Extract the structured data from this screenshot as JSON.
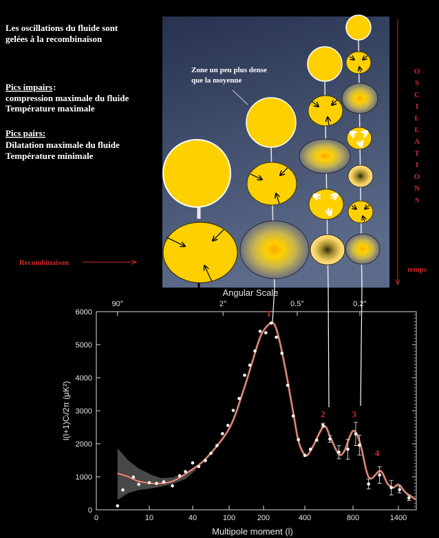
{
  "intro": {
    "line1": "Les oscillations du fluide sont",
    "line2": "gelées à la recombinaison"
  },
  "odd_peaks": {
    "heading": "Pics impairs",
    "heading_suffix": ":",
    "line1": "compression maximale du fluide",
    "line2": "Température maximale"
  },
  "even_peaks": {
    "heading": "Pics pairs:",
    "line1": "Dilatation maximale du fluide",
    "line2": "Température minimale"
  },
  "annotation": {
    "line1": "Zone un peu plus dense",
    "line2": "que la moyenne"
  },
  "recombination_label": "Recombinaison",
  "time_label": "temps",
  "oscillations_letters": [
    "O",
    "S",
    "C",
    "I",
    "L",
    "L",
    "A",
    "T",
    "I",
    "O",
    "N",
    "S"
  ],
  "colors": {
    "accent_red": "#d42a2a",
    "blob_yellow": "#ffd000",
    "panel_top": "#26324e",
    "panel_bottom": "#5d6b8b",
    "fit_curve": "#e8a090"
  },
  "chart_data": {
    "type": "scatter",
    "title": "",
    "top_axis_title": "Angular Scale",
    "xlabel": "Multipole moment (l)",
    "ylabel": "l(l+1)Cₗ/2π (μK²)",
    "ylim": [
      0,
      6000
    ],
    "y_ticks": [
      0,
      1000,
      2000,
      3000,
      4000,
      5000,
      6000
    ],
    "x_ticks": [
      0,
      10,
      40,
      100,
      200,
      400,
      800,
      1400
    ],
    "top_ticks": [
      {
        "label": "90°",
        "l": 4
      },
      {
        "label": "2°",
        "l": 90
      },
      {
        "label": "0.5°",
        "l": 363
      },
      {
        "label": "0.2°",
        "l": 891
      }
    ],
    "points": [
      {
        "l": 4,
        "v": 120
      },
      {
        "l": 5,
        "v": 600
      },
      {
        "l": 7,
        "v": 990
      },
      {
        "l": 8,
        "v": 770
      },
      {
        "l": 10,
        "v": 820
      },
      {
        "l": 15,
        "v": 800
      },
      {
        "l": 20,
        "v": 845
      },
      {
        "l": 26,
        "v": 725
      },
      {
        "l": 31,
        "v": 1030
      },
      {
        "l": 35,
        "v": 1155
      },
      {
        "l": 40,
        "v": 1420
      },
      {
        "l": 50,
        "v": 1310
      },
      {
        "l": 61,
        "v": 1490
      },
      {
        "l": 70,
        "v": 1710
      },
      {
        "l": 80,
        "v": 1945
      },
      {
        "l": 89,
        "v": 2305
      },
      {
        "l": 98,
        "v": 2555
      },
      {
        "l": 112,
        "v": 3010
      },
      {
        "l": 129,
        "v": 3370
      },
      {
        "l": 145,
        "v": 4075
      },
      {
        "l": 160,
        "v": 4380
      },
      {
        "l": 175,
        "v": 4810
      },
      {
        "l": 190,
        "v": 5405
      },
      {
        "l": 211,
        "v": 5360
      },
      {
        "l": 237,
        "v": 5655
      },
      {
        "l": 262,
        "v": 5225
      },
      {
        "l": 289,
        "v": 4740
      },
      {
        "l": 317,
        "v": 3770
      },
      {
        "l": 344,
        "v": 2840
      },
      {
        "l": 369,
        "v": 2125
      },
      {
        "l": 400,
        "v": 1647
      },
      {
        "l": 447,
        "v": 1834
      },
      {
        "l": 499,
        "v": 2110
      },
      {
        "l": 551,
        "v": 2560,
        "err": 60
      },
      {
        "l": 608,
        "v": 2145,
        "err": 100
      },
      {
        "l": 683,
        "v": 1744,
        "err": 200
      },
      {
        "l": 757,
        "v": 1834,
        "err": 300
      },
      {
        "l": 836,
        "v": 2297,
        "err": 350
      },
      {
        "l": 885,
        "v": 1958,
        "err": 300
      },
      {
        "l": 1006,
        "v": 782,
        "err": 150
      },
      {
        "l": 1151,
        "v": 1052,
        "err": 250
      },
      {
        "l": 1306,
        "v": 671,
        "err": 220
      },
      {
        "l": 1415,
        "v": 609,
        "err": 100
      },
      {
        "l": 1539,
        "v": 360,
        "err": 80
      }
    ],
    "fit": [
      {
        "l": 4,
        "v": 1107
      },
      {
        "l": 6,
        "v": 1003
      },
      {
        "l": 8,
        "v": 865
      },
      {
        "l": 15,
        "v": 796
      },
      {
        "l": 26,
        "v": 865
      },
      {
        "l": 37,
        "v": 1142
      },
      {
        "l": 62,
        "v": 1557
      },
      {
        "l": 100,
        "v": 2457
      },
      {
        "l": 140,
        "v": 3564
      },
      {
        "l": 167,
        "v": 4464
      },
      {
        "l": 193,
        "v": 5294
      },
      {
        "l": 237,
        "v": 5654
      },
      {
        "l": 266,
        "v": 5398
      },
      {
        "l": 306,
        "v": 4256
      },
      {
        "l": 346,
        "v": 2872
      },
      {
        "l": 371,
        "v": 2041
      },
      {
        "l": 409,
        "v": 1647
      },
      {
        "l": 465,
        "v": 1903
      },
      {
        "l": 558,
        "v": 2526
      },
      {
        "l": 614,
        "v": 2180
      },
      {
        "l": 679,
        "v": 1696
      },
      {
        "l": 726,
        "v": 1765
      },
      {
        "l": 800,
        "v": 2388
      },
      {
        "l": 891,
        "v": 2041
      },
      {
        "l": 982,
        "v": 1142
      },
      {
        "l": 1042,
        "v": 948
      },
      {
        "l": 1164,
        "v": 1176
      },
      {
        "l": 1255,
        "v": 796
      },
      {
        "l": 1330,
        "v": 671
      },
      {
        "l": 1406,
        "v": 761
      },
      {
        "l": 1497,
        "v": 519
      },
      {
        "l": 1633,
        "v": 311
      }
    ],
    "variance_band": {
      "l": [
        4,
        6,
        8,
        12,
        18,
        26,
        35,
        45
      ],
      "upper": [
        1860,
        1500,
        1250,
        1050,
        960,
        980,
        1100,
        1300
      ],
      "lower": [
        300,
        500,
        600,
        650,
        700,
        780,
        930,
        1200
      ]
    },
    "peak_labels": [
      {
        "label": "1",
        "l": 225,
        "v": 5850
      },
      {
        "label": "2",
        "l": 551,
        "v": 2800
      },
      {
        "label": "3",
        "l": 815,
        "v": 2800
      },
      {
        "label": "4",
        "l": 1118,
        "v": 1630
      }
    ]
  }
}
